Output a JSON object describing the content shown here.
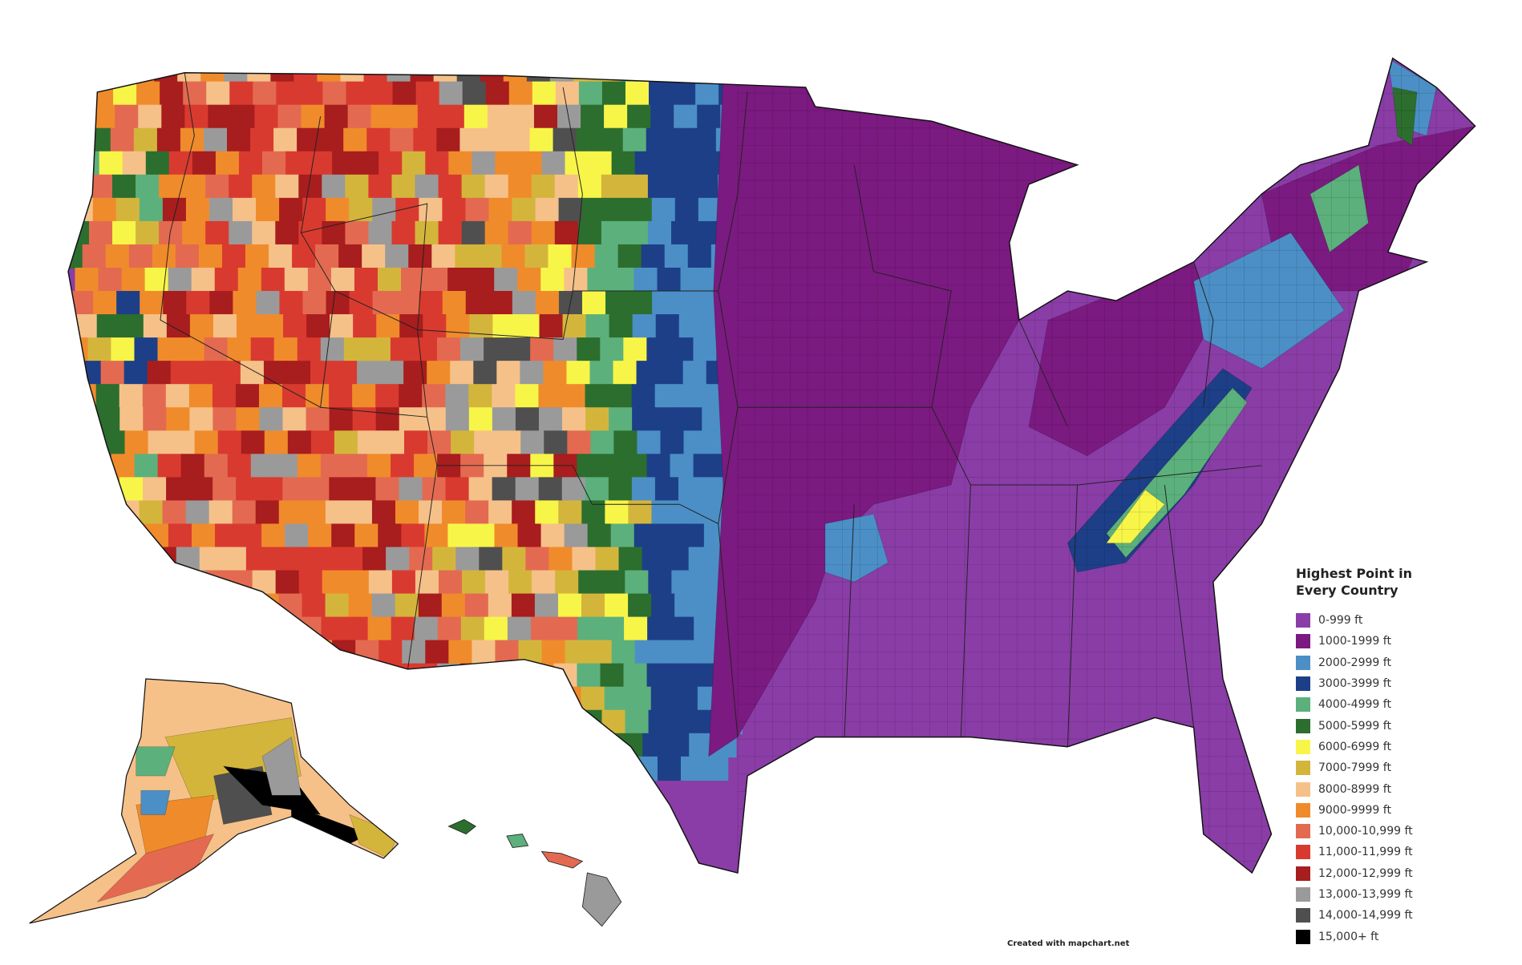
{
  "legend": {
    "title": "Highest Point in Every Country",
    "items": [
      {
        "label": "0-999 ft",
        "color": "#8a3da6"
      },
      {
        "label": "1000-1999 ft",
        "color": "#7b1a80"
      },
      {
        "label": "2000-2999 ft",
        "color": "#4b8fc6"
      },
      {
        "label": "3000-3999 ft",
        "color": "#1d3f88"
      },
      {
        "label": "4000-4999 ft",
        "color": "#5cb07c"
      },
      {
        "label": "5000-5999 ft",
        "color": "#2c6e2e"
      },
      {
        "label": "6000-6999 ft",
        "color": "#f8f549"
      },
      {
        "label": "7000-7999 ft",
        "color": "#d4b53c"
      },
      {
        "label": "8000-8999 ft",
        "color": "#f5c189"
      },
      {
        "label": "9000-9999 ft",
        "color": "#f08b2b"
      },
      {
        "label": "10,000-10,999 ft",
        "color": "#e36a50"
      },
      {
        "label": "11,000-11,999 ft",
        "color": "#d93a2f"
      },
      {
        "label": "12,000-12,999 ft",
        "color": "#a81d1d"
      },
      {
        "label": "13,000-13,999 ft",
        "color": "#9a9a9a"
      },
      {
        "label": "14,000-14,999 ft",
        "color": "#4f4f4f"
      },
      {
        "label": "15,000+ ft",
        "color": "#000000"
      }
    ]
  },
  "credit": "Created with mapchart.net"
}
